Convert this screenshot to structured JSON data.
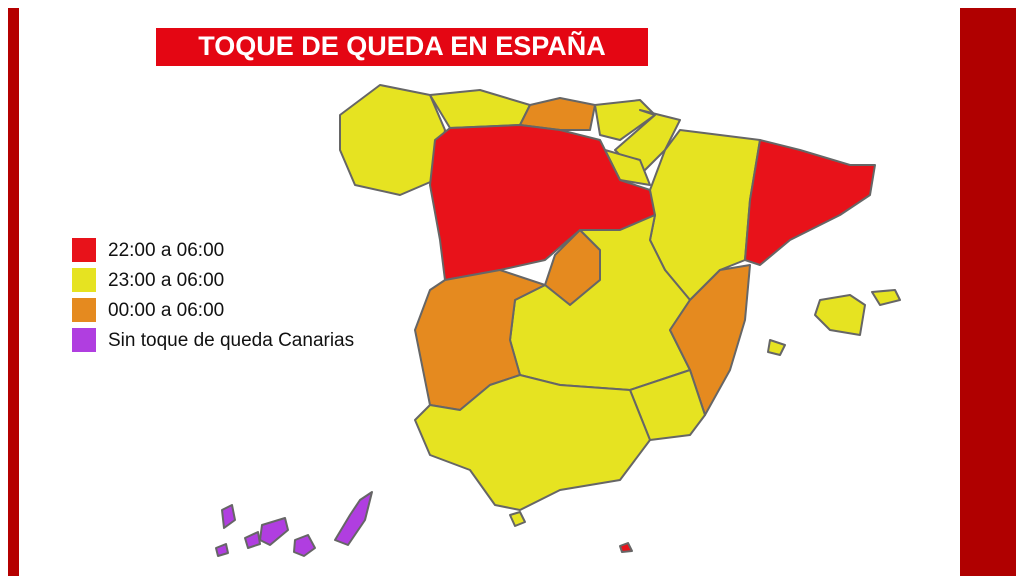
{
  "title": "TOQUE DE QUEDA EN ESPAÑA",
  "legend": [
    {
      "label": "22:00 a 06:00",
      "color": "#e8121a"
    },
    {
      "label": "23:00 a 06:00",
      "color": "#e6e321"
    },
    {
      "label": "00:00 a 06:00",
      "color": "#e58a1f"
    },
    {
      "label": "Sin toque de queda Canarias",
      "color": "#b03ee0"
    }
  ]
}
